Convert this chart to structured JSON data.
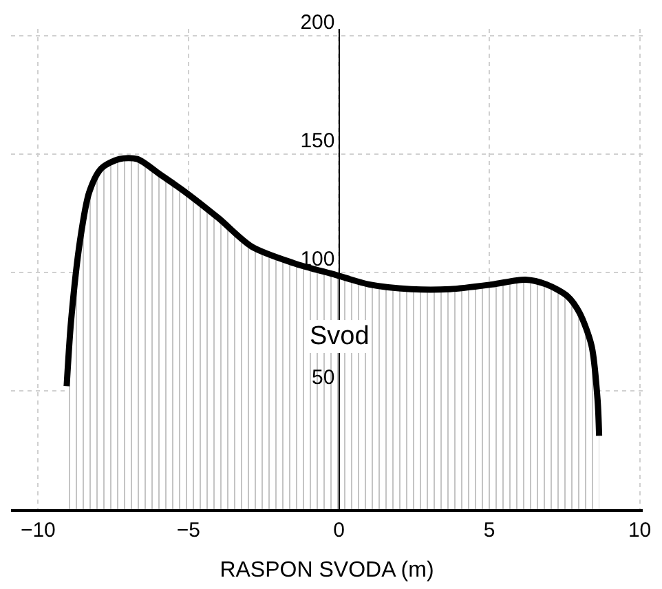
{
  "chart_data": {
    "type": "area",
    "xlabel": "RASPON SVODA (m)",
    "x": [
      -9.05,
      -8.9,
      -8.6,
      -8.3,
      -7.9,
      -7.3,
      -6.7,
      -6.0,
      -5.1,
      -4.0,
      -2.9,
      -1.5,
      -0.1,
      1.0,
      2.4,
      3.7,
      5.1,
      6.2,
      6.9,
      7.6,
      8.0,
      8.4,
      8.6,
      8.65
    ],
    "series": [
      {
        "color": "#000000",
        "values": [
          52,
          80,
          114,
          134,
          144,
          148,
          148,
          142,
          134,
          123,
          111,
          104,
          99,
          95,
          93,
          93,
          95,
          97,
          95,
          90,
          83,
          69,
          46,
          31
        ]
      }
    ],
    "xlim": [
      -10.9,
      10.1
    ],
    "ylim": [
      0,
      203
    ],
    "xticks": [
      -10,
      -5,
      0,
      5,
      10
    ],
    "yticks": [
      50,
      100,
      150,
      200
    ],
    "grid": true,
    "line_style": "solid",
    "annotations": [
      "Svod"
    ]
  }
}
